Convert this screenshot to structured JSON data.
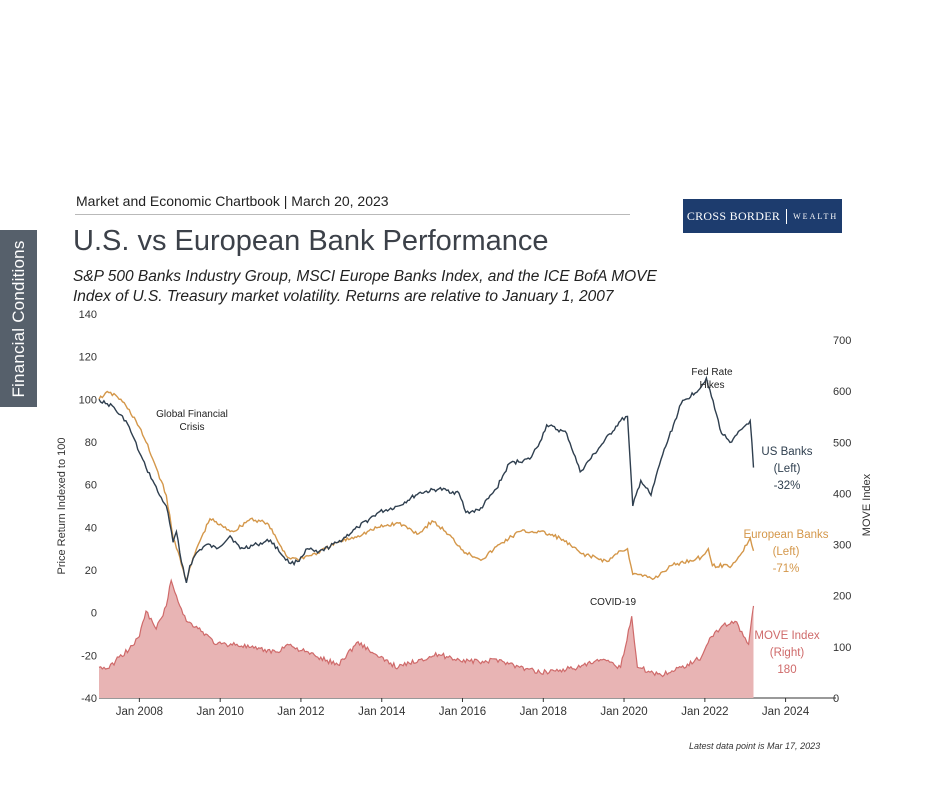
{
  "side_tab": {
    "label": "Financial Conditions"
  },
  "header": {
    "text": "Market and Economic Chartbook | March 20, 2023"
  },
  "logo": {
    "left": "CROSS BORDER",
    "right": "WEALTH",
    "bg_color": "#1d3c6e"
  },
  "title": "U.S. vs European Bank Performance",
  "subtitle_line1": "S&P 500 Banks Industry Group, MSCI Europe Banks Index, and the ICE BofA MOVE",
  "subtitle_line2": "Index of U.S. Treasury market volatility. Returns are relative to January 1, 2007",
  "footnote": "Latest data point is Mar 17, 2023",
  "chart_data": {
    "type": "line",
    "x_range": [
      "2007-01-01",
      "2025-04-01"
    ],
    "x_ticks": [
      {
        "date": "2008-01-01",
        "label": "Jan 2008"
      },
      {
        "date": "2010-01-01",
        "label": "Jan 2010"
      },
      {
        "date": "2012-01-01",
        "label": "Jan 2012"
      },
      {
        "date": "2014-01-01",
        "label": "Jan 2014"
      },
      {
        "date": "2016-01-01",
        "label": "Jan 2016"
      },
      {
        "date": "2018-01-01",
        "label": "Jan 2018"
      },
      {
        "date": "2020-01-01",
        "label": "Jan 2020"
      },
      {
        "date": "2022-01-01",
        "label": "Jan 2022"
      },
      {
        "date": "2024-01-01",
        "label": "Jan 2024"
      }
    ],
    "y_left": {
      "label": "Price Return Indexed to 100",
      "range": [
        -40,
        140
      ],
      "ticks": [
        -40,
        -20,
        0,
        20,
        40,
        60,
        80,
        100,
        120,
        140
      ]
    },
    "y_right": {
      "label": "MOVE Index",
      "range": [
        0,
        700
      ],
      "ticks": [
        0,
        100,
        200,
        300,
        400,
        500,
        600,
        700
      ]
    },
    "series": [
      {
        "name": "US Banks",
        "axis": "left",
        "color": "#2f3f4f",
        "style": "line",
        "label_lines": [
          "US Banks",
          "(Left)",
          "-32%"
        ],
        "points": [
          [
            "2007-01-01",
            100
          ],
          [
            "2007-03-01",
            98
          ],
          [
            "2007-05-01",
            97
          ],
          [
            "2007-07-01",
            93
          ],
          [
            "2007-09-01",
            90
          ],
          [
            "2007-11-01",
            83
          ],
          [
            "2008-01-01",
            75
          ],
          [
            "2008-03-01",
            68
          ],
          [
            "2008-05-01",
            62
          ],
          [
            "2008-07-01",
            55
          ],
          [
            "2008-09-01",
            50
          ],
          [
            "2008-10-01",
            42
          ],
          [
            "2008-11-01",
            33
          ],
          [
            "2008-12-01",
            38
          ],
          [
            "2009-01-01",
            28
          ],
          [
            "2009-03-01",
            14
          ],
          [
            "2009-04-01",
            22
          ],
          [
            "2009-06-01",
            28
          ],
          [
            "2009-09-01",
            32
          ],
          [
            "2009-12-01",
            30
          ],
          [
            "2010-04-01",
            36
          ],
          [
            "2010-07-01",
            30
          ],
          [
            "2010-12-01",
            32
          ],
          [
            "2011-04-01",
            34
          ],
          [
            "2011-08-01",
            26
          ],
          [
            "2011-10-01",
            23
          ],
          [
            "2011-12-01",
            24
          ],
          [
            "2012-03-01",
            30
          ],
          [
            "2012-06-01",
            28
          ],
          [
            "2012-12-01",
            33
          ],
          [
            "2013-06-01",
            40
          ],
          [
            "2013-12-01",
            47
          ],
          [
            "2014-06-01",
            50
          ],
          [
            "2014-12-01",
            56
          ],
          [
            "2015-06-01",
            58
          ],
          [
            "2015-12-01",
            56
          ],
          [
            "2016-02-01",
            47
          ],
          [
            "2016-06-01",
            48
          ],
          [
            "2016-11-01",
            58
          ],
          [
            "2017-03-01",
            70
          ],
          [
            "2017-09-01",
            72
          ],
          [
            "2017-12-01",
            80
          ],
          [
            "2018-02-01",
            88
          ],
          [
            "2018-08-01",
            84
          ],
          [
            "2018-12-01",
            66
          ],
          [
            "2019-06-01",
            78
          ],
          [
            "2019-12-01",
            90
          ],
          [
            "2020-02-01",
            92
          ],
          [
            "2020-03-20",
            50
          ],
          [
            "2020-06-01",
            62
          ],
          [
            "2020-09-01",
            55
          ],
          [
            "2020-12-01",
            72
          ],
          [
            "2021-06-01",
            98
          ],
          [
            "2021-12-01",
            106
          ],
          [
            "2022-01-15",
            110
          ],
          [
            "2022-06-01",
            84
          ],
          [
            "2022-09-01",
            80
          ],
          [
            "2022-12-01",
            86
          ],
          [
            "2023-02-15",
            90
          ],
          [
            "2023-03-17",
            68
          ]
        ]
      },
      {
        "name": "European Banks",
        "axis": "left",
        "color": "#d4974a",
        "style": "line",
        "label_lines": [
          "European Banks",
          "(Left)",
          "-71%"
        ],
        "points": [
          [
            "2007-01-01",
            100
          ],
          [
            "2007-03-01",
            103
          ],
          [
            "2007-06-01",
            102
          ],
          [
            "2007-09-01",
            97
          ],
          [
            "2007-12-01",
            90
          ],
          [
            "2008-03-01",
            80
          ],
          [
            "2008-06-01",
            68
          ],
          [
            "2008-09-01",
            55
          ],
          [
            "2008-11-01",
            35
          ],
          [
            "2009-01-01",
            26
          ],
          [
            "2009-03-01",
            15
          ],
          [
            "2009-06-01",
            30
          ],
          [
            "2009-10-01",
            44
          ],
          [
            "2010-02-01",
            40
          ],
          [
            "2010-05-01",
            38
          ],
          [
            "2010-10-01",
            44
          ],
          [
            "2011-03-01",
            42
          ],
          [
            "2011-09-01",
            26
          ],
          [
            "2011-12-01",
            25
          ],
          [
            "2012-06-01",
            28
          ],
          [
            "2012-12-01",
            33
          ],
          [
            "2013-06-01",
            36
          ],
          [
            "2013-12-01",
            40
          ],
          [
            "2014-06-01",
            42
          ],
          [
            "2014-12-01",
            37
          ],
          [
            "2015-04-01",
            43
          ],
          [
            "2015-08-01",
            38
          ],
          [
            "2016-02-01",
            28
          ],
          [
            "2016-07-01",
            25
          ],
          [
            "2016-12-01",
            32
          ],
          [
            "2017-06-01",
            38
          ],
          [
            "2017-12-01",
            38
          ],
          [
            "2018-06-01",
            35
          ],
          [
            "2018-12-01",
            28
          ],
          [
            "2019-08-01",
            24
          ],
          [
            "2019-12-01",
            29
          ],
          [
            "2020-02-01",
            30
          ],
          [
            "2020-03-20",
            18
          ],
          [
            "2020-10-01",
            16
          ],
          [
            "2021-03-01",
            22
          ],
          [
            "2021-12-01",
            26
          ],
          [
            "2022-02-01",
            30
          ],
          [
            "2022-03-10",
            22
          ],
          [
            "2022-09-01",
            22
          ],
          [
            "2022-12-01",
            28
          ],
          [
            "2023-02-15",
            35
          ],
          [
            "2023-03-17",
            29
          ]
        ]
      },
      {
        "name": "MOVE Index",
        "axis": "right",
        "color": "#cf6a6a",
        "fill": "#e8b4b4",
        "style": "area",
        "label_lines": [
          "MOVE Index",
          "(Right)",
          "180"
        ],
        "points": [
          [
            "2007-01-01",
            60
          ],
          [
            "2007-04-01",
            58
          ],
          [
            "2007-07-01",
            80
          ],
          [
            "2007-10-01",
            95
          ],
          [
            "2008-01-01",
            120
          ],
          [
            "2008-03-01",
            170
          ],
          [
            "2008-06-01",
            135
          ],
          [
            "2008-09-01",
            180
          ],
          [
            "2008-10-15",
            230
          ],
          [
            "2008-12-01",
            200
          ],
          [
            "2009-03-01",
            150
          ],
          [
            "2009-06-01",
            140
          ],
          [
            "2009-12-01",
            105
          ],
          [
            "2010-06-01",
            105
          ],
          [
            "2010-12-01",
            95
          ],
          [
            "2011-06-01",
            90
          ],
          [
            "2011-09-01",
            105
          ],
          [
            "2012-06-01",
            80
          ],
          [
            "2012-12-01",
            65
          ],
          [
            "2013-06-01",
            110
          ],
          [
            "2013-12-01",
            80
          ],
          [
            "2014-06-01",
            60
          ],
          [
            "2014-12-01",
            75
          ],
          [
            "2015-06-01",
            85
          ],
          [
            "2015-12-01",
            75
          ],
          [
            "2016-06-01",
            70
          ],
          [
            "2016-12-01",
            75
          ],
          [
            "2017-06-01",
            60
          ],
          [
            "2017-12-01",
            50
          ],
          [
            "2018-06-01",
            55
          ],
          [
            "2018-12-01",
            60
          ],
          [
            "2019-06-01",
            75
          ],
          [
            "2019-12-01",
            60
          ],
          [
            "2020-03-10",
            160
          ],
          [
            "2020-05-01",
            60
          ],
          [
            "2020-12-01",
            45
          ],
          [
            "2021-06-01",
            60
          ],
          [
            "2021-12-01",
            80
          ],
          [
            "2022-03-01",
            120
          ],
          [
            "2022-06-01",
            140
          ],
          [
            "2022-10-01",
            150
          ],
          [
            "2022-12-01",
            130
          ],
          [
            "2023-02-01",
            105
          ],
          [
            "2023-03-17",
            180
          ]
        ]
      }
    ],
    "annotations": [
      {
        "lines": [
          "Global Financial",
          "Crisis"
        ]
      },
      {
        "lines": [
          "Fed Rate",
          "Hikes"
        ]
      },
      {
        "lines": [
          "COVID-19"
        ]
      }
    ]
  }
}
